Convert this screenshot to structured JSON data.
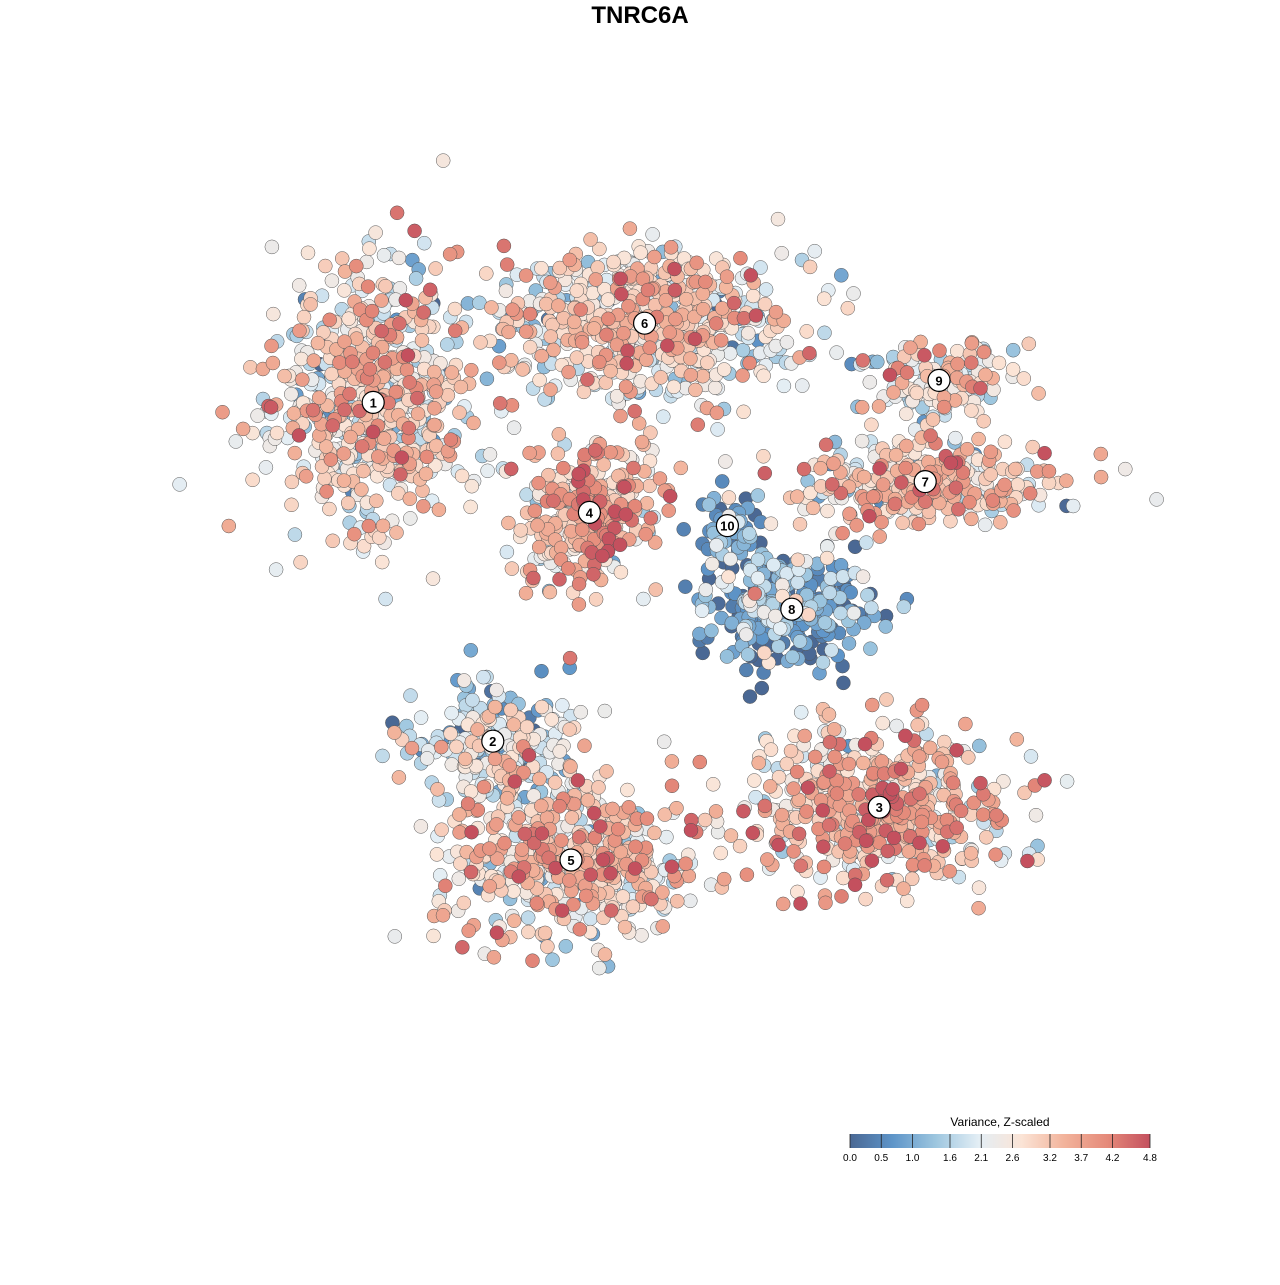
{
  "chart_data": {
    "type": "scatter",
    "title": "TNRC6A",
    "xlabel": "",
    "ylabel": "",
    "grid": false,
    "legend": {
      "title": "Variance, Z-scaled",
      "placement": "bottom-right",
      "ticks": [
        "0.0",
        "0.5",
        "1.0",
        "1.6",
        "2.1",
        "2.6",
        "3.2",
        "3.7",
        "4.2",
        "4.8"
      ],
      "min": 0.0,
      "max": 4.8,
      "colors": [
        "#4a6894",
        "#5e95c9",
        "#9dc6df",
        "#e3eef5",
        "#fbe4d6",
        "#f2b39b",
        "#e58a7a",
        "#c4505e"
      ]
    },
    "clusters": [
      {
        "label": "1",
        "x": -5.8,
        "y": 5.4,
        "mean": 2.6
      },
      {
        "label": "2",
        "x": -3.2,
        "y": -2.3,
        "mean": 2.0
      },
      {
        "label": "3",
        "x": 5.2,
        "y": -3.8,
        "mean": 3.1
      },
      {
        "label": "4",
        "x": -1.1,
        "y": 2.9,
        "mean": 3.2
      },
      {
        "label": "5",
        "x": -1.5,
        "y": -5.0,
        "mean": 2.8
      },
      {
        "label": "6",
        "x": 0.1,
        "y": 7.2,
        "mean": 2.6
      },
      {
        "label": "7",
        "x": 6.2,
        "y": 3.6,
        "mean": 2.8
      },
      {
        "label": "8",
        "x": 3.3,
        "y": 0.7,
        "mean": 0.9
      },
      {
        "label": "9",
        "x": 6.5,
        "y": 5.9,
        "mean": 2.5
      },
      {
        "label": "10",
        "x": 1.9,
        "y": 2.6,
        "mean": 0.6
      }
    ]
  }
}
